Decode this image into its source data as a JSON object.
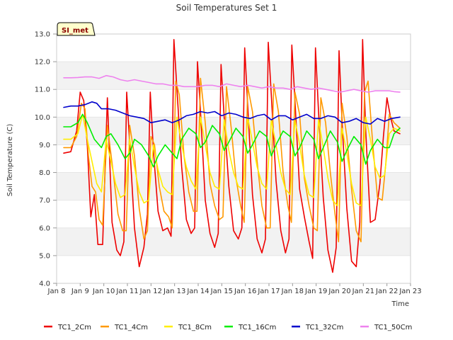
{
  "chart_data": {
    "type": "line",
    "title": "Soil Temperatures Set 1",
    "xlabel": "Time",
    "ylabel": "Soil Temperature (C)",
    "ylim": [
      4.0,
      13.0
    ],
    "y_ticks": [
      "4.0",
      "5.0",
      "6.0",
      "7.0",
      "8.0",
      "9.0",
      "10.0",
      "11.0",
      "12.0",
      "13.0"
    ],
    "xlim": [
      8,
      23
    ],
    "x_ticks": [
      "Jan 8",
      "Jan 9",
      "Jan 10",
      "Jan 11",
      "Jan 12",
      "Jan 13",
      "Jan 14",
      "Jan 15",
      "Jan 16",
      "Jan 17",
      "Jan 18",
      "Jan 19",
      "Jan 20",
      "Jan 21",
      "Jan 22",
      "Jan 23"
    ],
    "x_tick_values": [
      8,
      9,
      10,
      11,
      12,
      13,
      14,
      15,
      16,
      17,
      18,
      19,
      20,
      21,
      22,
      23
    ],
    "station_badge": "SI_met",
    "grid": "horizontal bands",
    "legend_position": "bottom",
    "series": [
      {
        "name": "TC1_2Cm",
        "color": "#ee0000",
        "x": [
          8.3,
          8.6,
          8.85,
          9.0,
          9.15,
          9.3,
          9.45,
          9.6,
          9.75,
          9.95,
          10.15,
          10.35,
          10.55,
          10.7,
          10.85,
          10.97,
          11.1,
          11.3,
          11.5,
          11.7,
          11.85,
          11.97,
          12.1,
          12.3,
          12.5,
          12.7,
          12.85,
          12.97,
          13.1,
          13.3,
          13.5,
          13.7,
          13.85,
          13.97,
          14.1,
          14.3,
          14.5,
          14.7,
          14.85,
          14.97,
          15.1,
          15.3,
          15.5,
          15.7,
          15.85,
          15.97,
          16.1,
          16.3,
          16.5,
          16.7,
          16.85,
          16.97,
          17.1,
          17.3,
          17.5,
          17.7,
          17.85,
          17.97,
          18.1,
          18.3,
          18.5,
          18.7,
          18.85,
          18.97,
          19.1,
          19.3,
          19.5,
          19.7,
          19.85,
          19.97,
          20.1,
          20.3,
          20.5,
          20.7,
          20.85,
          20.97,
          21.1,
          21.3,
          21.5,
          21.7,
          21.85,
          22.0,
          22.15,
          22.3,
          22.55
        ],
        "y": [
          8.7,
          8.75,
          9.5,
          10.9,
          10.6,
          9.0,
          6.4,
          7.2,
          5.4,
          5.4,
          10.7,
          6.2,
          5.2,
          5.0,
          5.5,
          10.9,
          9.0,
          6.0,
          4.6,
          5.3,
          6.5,
          10.9,
          8.8,
          6.6,
          5.9,
          6.0,
          5.7,
          12.8,
          11.0,
          8.2,
          6.3,
          5.8,
          6.0,
          12.0,
          10.2,
          7.0,
          5.8,
          5.3,
          5.8,
          11.9,
          10.0,
          7.5,
          5.9,
          5.6,
          6.0,
          12.5,
          10.4,
          7.2,
          5.6,
          5.1,
          5.6,
          12.7,
          10.8,
          7.7,
          5.9,
          5.1,
          5.6,
          12.6,
          10.6,
          7.4,
          6.4,
          5.5,
          4.9,
          12.5,
          10.2,
          7.1,
          5.2,
          4.4,
          5.3,
          12.4,
          9.8,
          6.7,
          4.8,
          4.6,
          6.2,
          12.8,
          9.5,
          6.2,
          6.3,
          7.6,
          9.3,
          10.7,
          10.0,
          9.5,
          9.4
        ]
      },
      {
        "name": "TC1_4Cm",
        "color": "#ff9900",
        "x": [
          8.3,
          8.6,
          8.85,
          9.05,
          9.2,
          9.35,
          9.5,
          9.65,
          9.8,
          9.95,
          10.15,
          10.4,
          10.6,
          10.8,
          10.95,
          11.1,
          11.3,
          11.5,
          11.7,
          11.85,
          12.0,
          12.15,
          12.35,
          12.55,
          12.75,
          12.9,
          13.05,
          13.2,
          13.4,
          13.6,
          13.8,
          13.95,
          14.1,
          14.3,
          14.5,
          14.7,
          14.9,
          15.05,
          15.2,
          15.4,
          15.6,
          15.8,
          15.95,
          16.1,
          16.3,
          16.5,
          16.7,
          16.9,
          17.05,
          17.2,
          17.4,
          17.6,
          17.8,
          17.95,
          18.1,
          18.3,
          18.5,
          18.7,
          18.9,
          19.05,
          19.2,
          19.4,
          19.6,
          19.8,
          19.95,
          20.1,
          20.3,
          20.5,
          20.7,
          20.9,
          21.05,
          21.2,
          21.4,
          21.6,
          21.8,
          21.95,
          22.1,
          22.3,
          22.55
        ],
        "y": [
          8.9,
          8.9,
          9.3,
          10.5,
          10.3,
          8.6,
          7.5,
          7.3,
          6.3,
          6.1,
          9.7,
          8.0,
          6.5,
          5.9,
          5.9,
          9.7,
          8.6,
          6.7,
          5.6,
          5.9,
          9.3,
          9.0,
          7.5,
          6.6,
          6.4,
          6.0,
          11.3,
          10.8,
          8.6,
          7.3,
          6.6,
          6.6,
          11.4,
          9.8,
          7.6,
          6.8,
          6.3,
          6.4,
          11.1,
          9.6,
          7.8,
          6.8,
          6.2,
          11.1,
          10.2,
          8.4,
          6.8,
          6.0,
          6.0,
          11.2,
          10.2,
          8.0,
          6.8,
          6.2,
          10.9,
          10.1,
          7.8,
          6.8,
          6.0,
          5.9,
          10.7,
          9.8,
          8.0,
          6.5,
          5.5,
          10.5,
          9.3,
          7.4,
          5.9,
          5.5,
          10.9,
          11.3,
          9.0,
          7.1,
          7.0,
          8.3,
          10.1,
          9.8,
          9.6
        ]
      },
      {
        "name": "TC1_8Cm",
        "color": "#ffee00",
        "x": [
          8.3,
          8.6,
          8.9,
          9.1,
          9.3,
          9.5,
          9.7,
          9.9,
          10.1,
          10.3,
          10.5,
          10.7,
          10.9,
          11.1,
          11.3,
          11.5,
          11.7,
          11.9,
          12.1,
          12.3,
          12.5,
          12.7,
          12.9,
          13.1,
          13.3,
          13.5,
          13.7,
          13.9,
          14.1,
          14.3,
          14.5,
          14.7,
          14.9,
          15.1,
          15.3,
          15.5,
          15.7,
          15.9,
          16.1,
          16.3,
          16.5,
          16.7,
          16.9,
          17.1,
          17.3,
          17.5,
          17.7,
          17.9,
          18.1,
          18.3,
          18.5,
          18.7,
          18.9,
          19.1,
          19.3,
          19.5,
          19.7,
          19.9,
          20.1,
          20.3,
          20.5,
          20.7,
          20.9,
          21.1,
          21.3,
          21.5,
          21.7,
          21.9,
          22.1,
          22.3,
          22.55
        ],
        "y": [
          9.2,
          9.2,
          9.4,
          10.1,
          9.2,
          8.4,
          7.6,
          7.3,
          9.2,
          8.4,
          7.6,
          7.1,
          7.2,
          9.2,
          8.2,
          7.3,
          6.9,
          7.0,
          9.0,
          8.1,
          7.5,
          7.3,
          7.2,
          10.0,
          9.0,
          8.2,
          7.7,
          7.4,
          10.0,
          9.0,
          8.0,
          7.5,
          7.4,
          9.9,
          8.8,
          8.0,
          7.5,
          7.4,
          10.0,
          9.1,
          8.2,
          7.6,
          7.4,
          9.9,
          9.0,
          8.0,
          7.4,
          7.2,
          9.9,
          9.0,
          7.9,
          7.2,
          7.1,
          9.9,
          8.9,
          7.8,
          7.0,
          6.8,
          9.6,
          8.7,
          7.6,
          6.9,
          6.8,
          10.0,
          9.2,
          8.2,
          7.8,
          7.9,
          9.4,
          9.6,
          9.5
        ]
      },
      {
        "name": "TC1_16Cm",
        "color": "#00ee00",
        "x": [
          8.3,
          8.6,
          8.9,
          9.1,
          9.3,
          9.6,
          9.9,
          10.1,
          10.3,
          10.6,
          10.9,
          11.1,
          11.3,
          11.6,
          11.9,
          12.1,
          12.3,
          12.6,
          12.9,
          13.1,
          13.3,
          13.6,
          13.9,
          14.1,
          14.3,
          14.6,
          14.9,
          15.1,
          15.3,
          15.6,
          15.9,
          16.1,
          16.3,
          16.6,
          16.9,
          17.1,
          17.3,
          17.6,
          17.9,
          18.1,
          18.3,
          18.6,
          18.9,
          19.1,
          19.3,
          19.6,
          19.9,
          20.1,
          20.3,
          20.6,
          20.9,
          21.1,
          21.3,
          21.6,
          21.9,
          22.1,
          22.3,
          22.55
        ],
        "y": [
          9.65,
          9.65,
          9.8,
          10.1,
          9.8,
          9.2,
          8.9,
          9.3,
          9.4,
          9.0,
          8.5,
          8.7,
          9.2,
          9.0,
          8.6,
          8.2,
          8.6,
          9.0,
          8.7,
          8.5,
          9.2,
          9.6,
          9.4,
          8.9,
          9.1,
          9.7,
          9.4,
          8.8,
          9.1,
          9.6,
          9.3,
          8.7,
          9.0,
          9.5,
          9.3,
          8.6,
          9.0,
          9.5,
          9.3,
          8.6,
          8.9,
          9.5,
          9.2,
          8.5,
          8.9,
          9.5,
          9.1,
          8.4,
          8.8,
          9.3,
          9.0,
          8.3,
          8.8,
          9.2,
          8.9,
          8.9,
          9.4,
          9.6
        ]
      },
      {
        "name": "TC1_32Cm",
        "color": "#0000cc",
        "x": [
          8.3,
          8.6,
          8.9,
          9.2,
          9.5,
          9.7,
          9.9,
          10.2,
          10.5,
          10.8,
          11.1,
          11.4,
          11.7,
          12.0,
          12.3,
          12.6,
          12.9,
          13.2,
          13.5,
          13.8,
          14.1,
          14.4,
          14.7,
          15.0,
          15.3,
          15.6,
          15.9,
          16.2,
          16.5,
          16.8,
          17.1,
          17.4,
          17.7,
          18.0,
          18.3,
          18.6,
          18.9,
          19.2,
          19.5,
          19.8,
          20.1,
          20.4,
          20.7,
          21.0,
          21.3,
          21.6,
          21.9,
          22.2,
          22.55
        ],
        "y": [
          10.35,
          10.4,
          10.4,
          10.45,
          10.55,
          10.5,
          10.3,
          10.3,
          10.25,
          10.15,
          10.05,
          10.0,
          9.95,
          9.8,
          9.85,
          9.9,
          9.8,
          9.9,
          10.05,
          10.1,
          10.2,
          10.15,
          10.2,
          10.05,
          10.15,
          10.1,
          10.0,
          9.95,
          10.05,
          10.1,
          9.9,
          10.05,
          10.05,
          9.9,
          10.0,
          10.1,
          9.95,
          9.95,
          10.05,
          10.0,
          9.8,
          9.85,
          9.95,
          9.8,
          9.75,
          9.95,
          9.85,
          9.95,
          10.0
        ]
      },
      {
        "name": "TC1_50Cm",
        "color": "#ee82ee",
        "x": [
          8.3,
          8.6,
          8.9,
          9.2,
          9.5,
          9.8,
          10.1,
          10.4,
          10.7,
          11.0,
          11.3,
          11.6,
          11.9,
          12.2,
          12.5,
          12.8,
          13.1,
          13.4,
          13.7,
          14.0,
          14.3,
          14.6,
          14.9,
          15.2,
          15.5,
          15.8,
          16.1,
          16.4,
          16.7,
          17.0,
          17.3,
          17.6,
          17.9,
          18.2,
          18.5,
          18.8,
          19.1,
          19.4,
          19.7,
          20.0,
          20.3,
          20.6,
          20.9,
          21.2,
          21.5,
          21.8,
          22.1,
          22.3,
          22.55
        ],
        "y": [
          11.42,
          11.42,
          11.43,
          11.45,
          11.45,
          11.4,
          11.5,
          11.45,
          11.35,
          11.3,
          11.35,
          11.3,
          11.25,
          11.2,
          11.2,
          11.15,
          11.15,
          11.1,
          11.1,
          11.1,
          11.15,
          11.15,
          11.1,
          11.2,
          11.15,
          11.1,
          11.15,
          11.1,
          11.05,
          11.1,
          11.05,
          11.05,
          11.0,
          11.1,
          11.05,
          11.0,
          11.05,
          11.0,
          10.95,
          10.9,
          10.95,
          11.0,
          10.95,
          10.9,
          10.95,
          10.95,
          10.95,
          10.92,
          10.9
        ]
      }
    ]
  }
}
